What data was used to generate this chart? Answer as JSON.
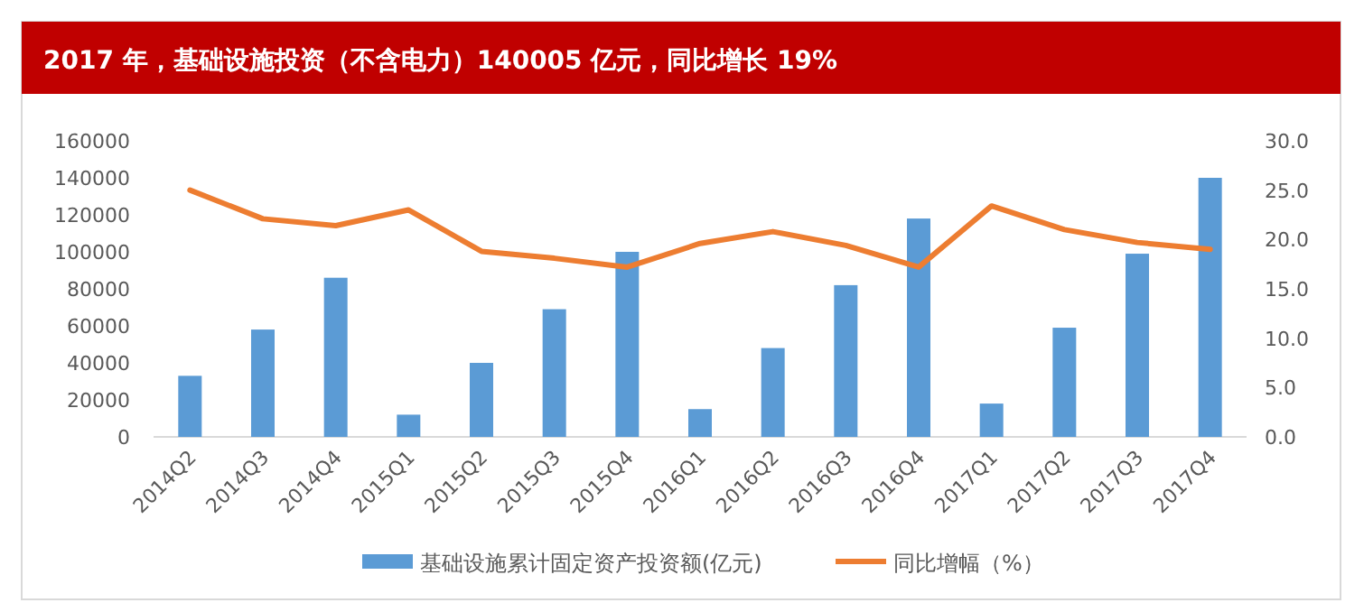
{
  "chart_data": {
    "type": "bar",
    "title": "2017 年，基础设施投资（不含电力）140005 亿元，同比增长 19%",
    "categories": [
      "2014Q2",
      "2014Q3",
      "2014Q4",
      "2015Q1",
      "2015Q2",
      "2015Q3",
      "2015Q4",
      "2016Q1",
      "2016Q2",
      "2016Q3",
      "2016Q4",
      "2017Q1",
      "2017Q2",
      "2017Q3",
      "2017Q4"
    ],
    "series": [
      {
        "name": "基础设施累计固定资产投资额(亿元)",
        "color": "#5b9bd5",
        "values": [
          33000,
          58000,
          86000,
          12000,
          40000,
          69000,
          100000,
          15000,
          48000,
          82000,
          118000,
          18000,
          59000,
          99000,
          140000
        ]
      },
      {
        "name": "同比增幅（%）",
        "type": "line",
        "axis": "y2",
        "color": "#ed7d31",
        "values": [
          25.0,
          22.1,
          21.4,
          23.0,
          18.8,
          18.1,
          17.2,
          19.6,
          20.8,
          19.4,
          17.2,
          23.4,
          21.0,
          19.7,
          19.0
        ]
      }
    ],
    "ylim": [
      0,
      160000
    ],
    "yticks": [
      0,
      20000,
      40000,
      60000,
      80000,
      100000,
      120000,
      140000,
      160000
    ],
    "y2lim": [
      0,
      30
    ],
    "y2ticks": [
      {
        "value": 0,
        "label": "0.0"
      },
      {
        "value": 5,
        "label": "5.0"
      },
      {
        "value": 10,
        "label": "10.0"
      },
      {
        "value": 15,
        "label": "15.0"
      },
      {
        "value": 20,
        "label": "20.0"
      },
      {
        "value": 25,
        "label": "25.0"
      },
      {
        "value": 30,
        "label": "30.0"
      }
    ],
    "legend": "bottom",
    "grid": false
  }
}
